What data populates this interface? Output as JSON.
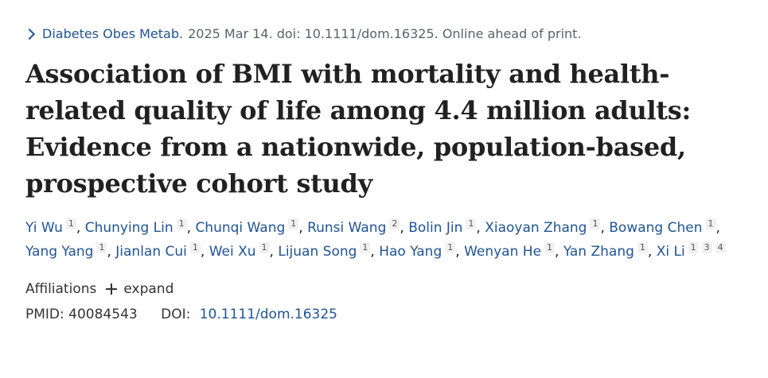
{
  "citation": {
    "journal": "Diabetes Obes Metab.",
    "details": "2025 Mar 14. doi: 10.1111/dom.16325. Online ahead of print."
  },
  "title": "Association of BMI with mortality and health-related quality of life among 4.4 million adults: Evidence from a nationwide, population-based, prospective cohort study",
  "authors": [
    {
      "name": "Yi Wu",
      "affs": [
        "1"
      ]
    },
    {
      "name": "Chunying Lin",
      "affs": [
        "1"
      ]
    },
    {
      "name": "Chunqi Wang",
      "affs": [
        "1"
      ]
    },
    {
      "name": "Runsi Wang",
      "affs": [
        "2"
      ]
    },
    {
      "name": "Bolin Jin",
      "affs": [
        "1"
      ]
    },
    {
      "name": "Xiaoyan Zhang",
      "affs": [
        "1"
      ]
    },
    {
      "name": "Bowang Chen",
      "affs": [
        "1"
      ]
    },
    {
      "name": "Yang Yang",
      "affs": [
        "1"
      ]
    },
    {
      "name": "Jianlan Cui",
      "affs": [
        "1"
      ]
    },
    {
      "name": "Wei Xu",
      "affs": [
        "1"
      ]
    },
    {
      "name": "Lijuan Song",
      "affs": [
        "1"
      ]
    },
    {
      "name": "Hao Yang",
      "affs": [
        "1"
      ]
    },
    {
      "name": "Wenyan He",
      "affs": [
        "1"
      ]
    },
    {
      "name": "Yan Zhang",
      "affs": [
        "1"
      ]
    },
    {
      "name": "Xi Li",
      "affs": [
        "1",
        "3",
        "4"
      ]
    }
  ],
  "affiliations": {
    "label": "Affiliations",
    "expand_label": "expand"
  },
  "ids": {
    "pmid_label": "PMID:",
    "pmid": "40084543",
    "doi_label": "DOI:",
    "doi": "10.1111/dom.16325"
  },
  "colors": {
    "link": "#205493",
    "text": "#212121"
  }
}
